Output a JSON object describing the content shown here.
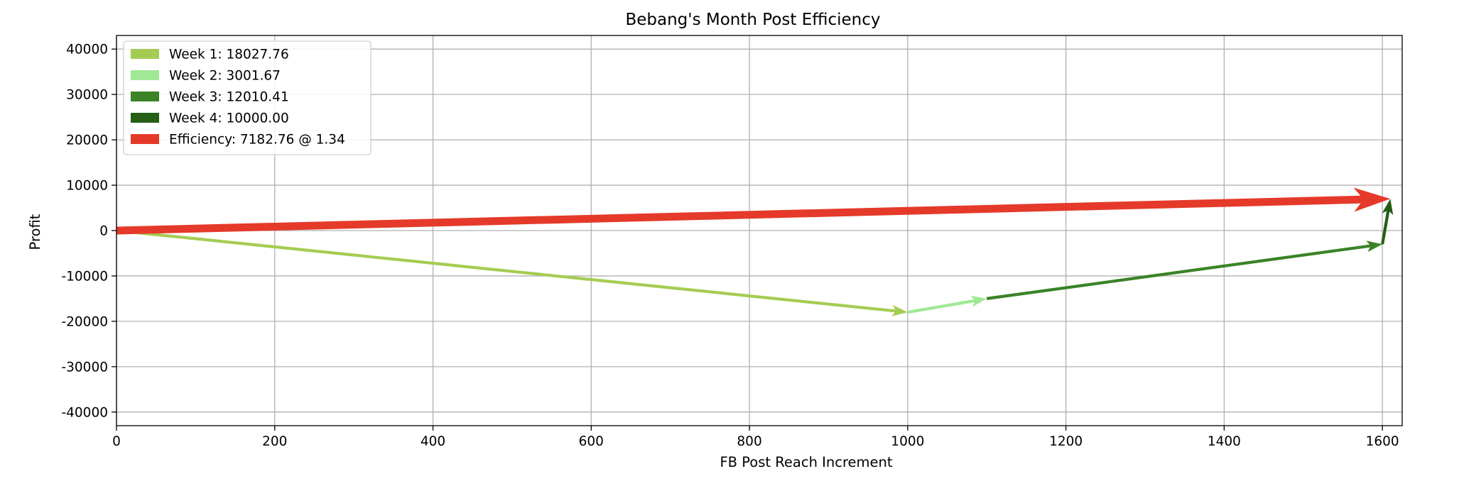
{
  "chart_data": {
    "type": "quiver",
    "title": "Bebang's Month Post Efficiency",
    "xlabel": "FB Post Reach Increment",
    "ylabel": "Profit",
    "xlim": [
      0,
      1625
    ],
    "ylim": [
      -43000,
      43000
    ],
    "grid": true,
    "xticks": [
      0,
      200,
      400,
      600,
      800,
      1000,
      1200,
      1400,
      1600
    ],
    "yticks": [
      -40000,
      -30000,
      -20000,
      -10000,
      0,
      10000,
      20000,
      30000,
      40000
    ],
    "legend_position": "top-left",
    "series": [
      {
        "name": "Week 1",
        "label": "Week 1: 18027.76",
        "start": [
          0,
          0
        ],
        "end": [
          1000,
          -18000
        ],
        "color": "#a5cc52",
        "weight": "thin"
      },
      {
        "name": "Week 2",
        "label": "Week 2: 3001.67",
        "start": [
          1000,
          -18000
        ],
        "end": [
          1100,
          -15000
        ],
        "color": "#a0e895",
        "weight": "thin"
      },
      {
        "name": "Week 3",
        "label": "Week 3: 12010.41",
        "start": [
          1100,
          -15000
        ],
        "end": [
          1600,
          -3000
        ],
        "color": "#3a8326",
        "weight": "thin"
      },
      {
        "name": "Week 4",
        "label": "Week 4: 10000.00",
        "start": [
          1600,
          -3000
        ],
        "end": [
          1610,
          7000
        ],
        "color": "#245f15",
        "weight": "thin"
      },
      {
        "name": "Efficiency",
        "label": "Efficiency: 7182.76 @ 1.34",
        "start": [
          0,
          0
        ],
        "end": [
          1610,
          7000
        ],
        "color": "#e53a29",
        "weight": "thick"
      }
    ]
  }
}
